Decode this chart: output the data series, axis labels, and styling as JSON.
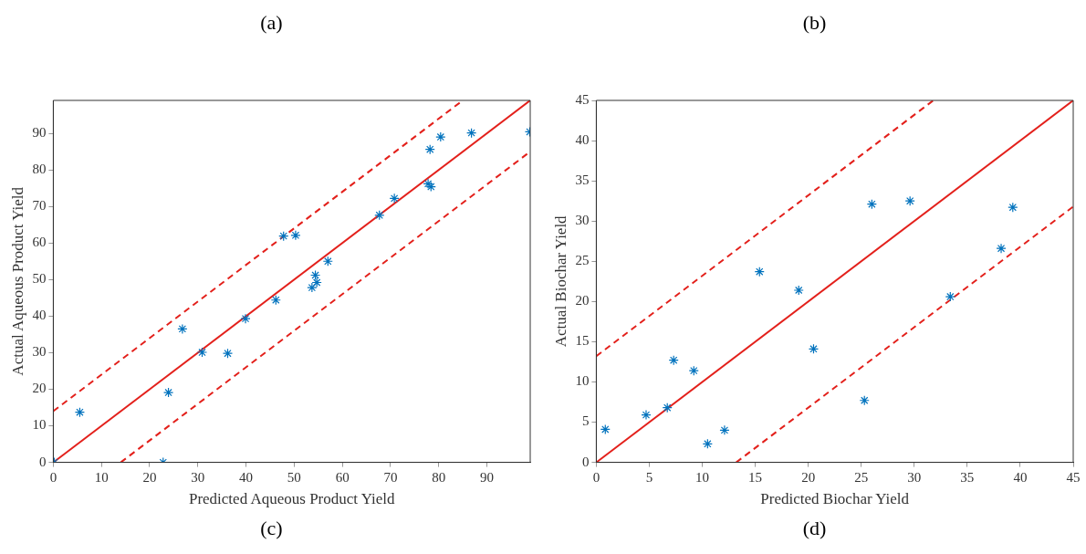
{
  "chart_data": [
    {
      "type": "scatter",
      "title": "(a)",
      "xlabel": "Predicted Aqueous Product Yield",
      "ylabel": "Actual Aqueous Product Yield",
      "annotations": [
        "(c)"
      ],
      "xlim": [
        0,
        99
      ],
      "ylim": [
        0,
        99
      ],
      "xticks": [
        0,
        10,
        20,
        30,
        40,
        50,
        60,
        70,
        80,
        90
      ],
      "yticks": [
        0,
        10,
        20,
        30,
        40,
        50,
        60,
        70,
        80,
        90
      ],
      "grid": false,
      "legend": false,
      "x": [
        0.2,
        5.5,
        22.8,
        23.9,
        26.8,
        30.9,
        36.2,
        39.9,
        46.2,
        47.8,
        50.3,
        53.7,
        54.4,
        54.7,
        57,
        67.7,
        70.8,
        77.8,
        78.4,
        78.2,
        80.4,
        86.8,
        98.9
      ],
      "series": [
        {
          "color": "#0072bd",
          "marker": "cross",
          "values": [
            0,
            13.7,
            0,
            19.1,
            36.5,
            30.1,
            29.8,
            39.3,
            44.4,
            61.9,
            62.1,
            47.8,
            51.2,
            49.2,
            55,
            67.6,
            72.2,
            76.2,
            75.4,
            85.6,
            89,
            90.1,
            90.4
          ]
        },
        {
          "type": "line",
          "color": "#e3201b",
          "marker": "none",
          "line_style": "solid",
          "x": [
            0,
            99
          ],
          "values": [
            0,
            99
          ]
        },
        {
          "type": "line",
          "color": "#e3201b",
          "marker": "none",
          "line_style": "dashed",
          "x": [
            0,
            85
          ],
          "values": [
            14,
            99
          ]
        },
        {
          "type": "line",
          "color": "#e3201b",
          "marker": "none",
          "line_style": "dashed",
          "x": [
            14,
            99
          ],
          "values": [
            0,
            85
          ]
        }
      ]
    },
    {
      "type": "scatter",
      "title": "(b)",
      "xlabel": "Predicted Biochar Yield",
      "ylabel": "Actual Biochar Yield",
      "annotations": [
        "(d)"
      ],
      "xlim": [
        0,
        45
      ],
      "ylim": [
        0,
        45
      ],
      "xticks": [
        0,
        5,
        10,
        15,
        20,
        25,
        30,
        35,
        40,
        45
      ],
      "yticks": [
        0,
        5,
        10,
        15,
        20,
        25,
        30,
        35,
        40,
        45
      ],
      "grid": false,
      "legend": false,
      "x": [
        0.85,
        4.7,
        6.7,
        7.3,
        9.2,
        10.5,
        12.1,
        15.4,
        19.1,
        20.5,
        25.3,
        26,
        29.6,
        33.4,
        38.2,
        39.3
      ],
      "series": [
        {
          "color": "#0072bd",
          "marker": "cross",
          "values": [
            4.1,
            5.9,
            6.8,
            12.7,
            11.4,
            2.3,
            4,
            23.7,
            21.4,
            14.1,
            7.7,
            32.1,
            32.5,
            20.6,
            26.6,
            31.7
          ]
        },
        {
          "type": "line",
          "color": "#e3201b",
          "marker": "none",
          "line_style": "solid",
          "x": [
            0,
            45
          ],
          "values": [
            0,
            45
          ]
        },
        {
          "type": "line",
          "color": "#e3201b",
          "marker": "none",
          "line_style": "dashed",
          "x": [
            0,
            31.8
          ],
          "values": [
            13.2,
            45
          ]
        },
        {
          "type": "line",
          "color": "#e3201b",
          "marker": "none",
          "line_style": "dashed",
          "x": [
            13.2,
            45
          ],
          "values": [
            0,
            31.8
          ]
        }
      ]
    }
  ]
}
